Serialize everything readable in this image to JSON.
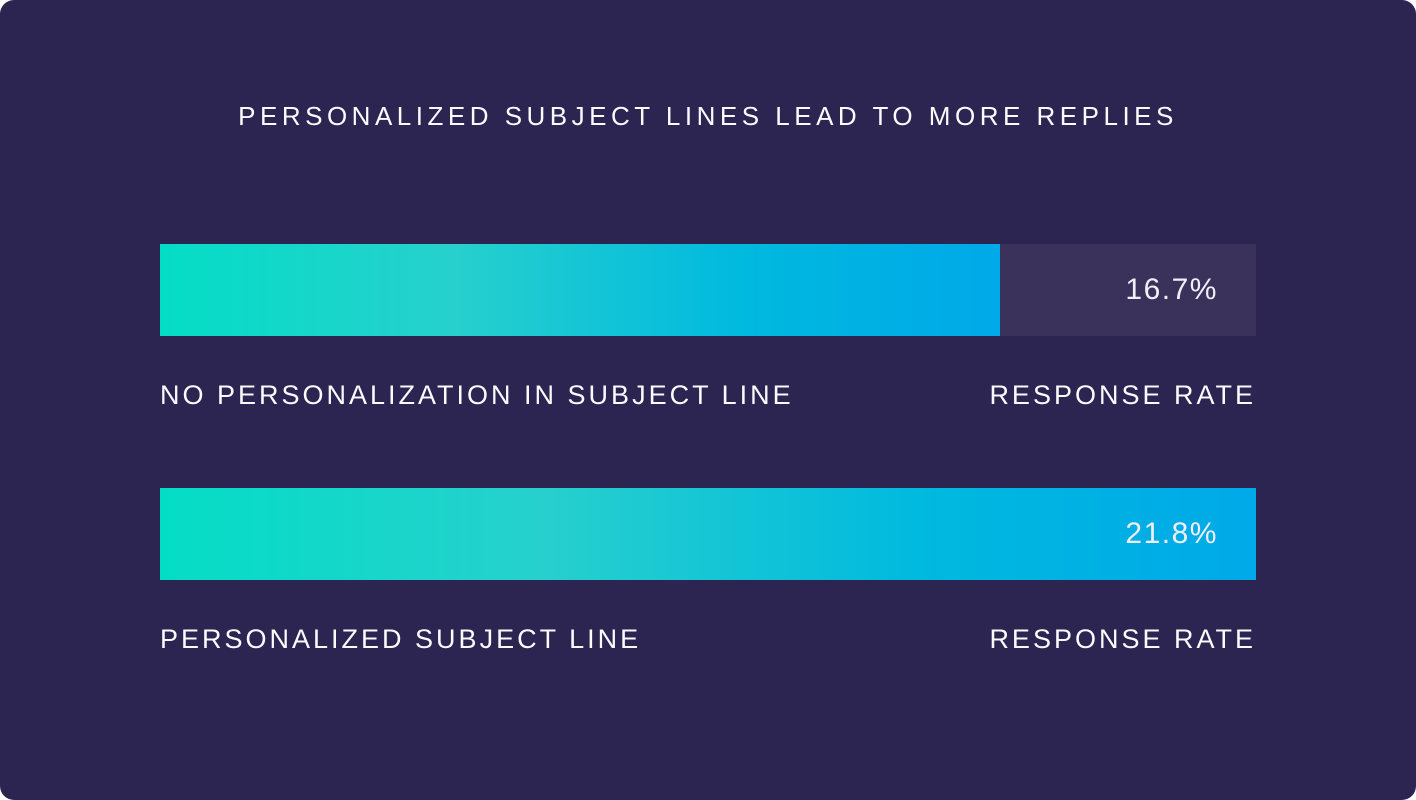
{
  "title": "PERSONALIZED SUBJECT LINES LEAD TO MORE REPLIES",
  "bars": [
    {
      "label": "NO PERSONALIZATION IN SUBJECT LINE",
      "axis_label": "RESPONSE RATE",
      "value": 16.7,
      "value_text": "16.7%",
      "fill_percent": 76.6
    },
    {
      "label": "PERSONALIZED SUBJECT LINE",
      "axis_label": "RESPONSE RATE",
      "value": 21.8,
      "value_text": "21.8%",
      "fill_percent": 100
    }
  ],
  "colors": {
    "card_background": "#2c2451",
    "bar_track": "#3b325c",
    "gradient_start": "#04ddc6",
    "gradient_end": "#00a9e8",
    "text": "#fbfafd"
  },
  "chart_data": {
    "type": "bar",
    "orientation": "horizontal",
    "title": "PERSONALIZED SUBJECT LINES LEAD TO MORE REPLIES",
    "categories": [
      "NO PERSONALIZATION IN SUBJECT LINE",
      "PERSONALIZED SUBJECT LINE"
    ],
    "values": [
      16.7,
      21.8
    ],
    "value_suffix": "%",
    "value_axis_label": "RESPONSE RATE",
    "xlim": [
      0,
      21.8
    ],
    "grid": false,
    "legend": false,
    "bar_labels_inside": true
  }
}
